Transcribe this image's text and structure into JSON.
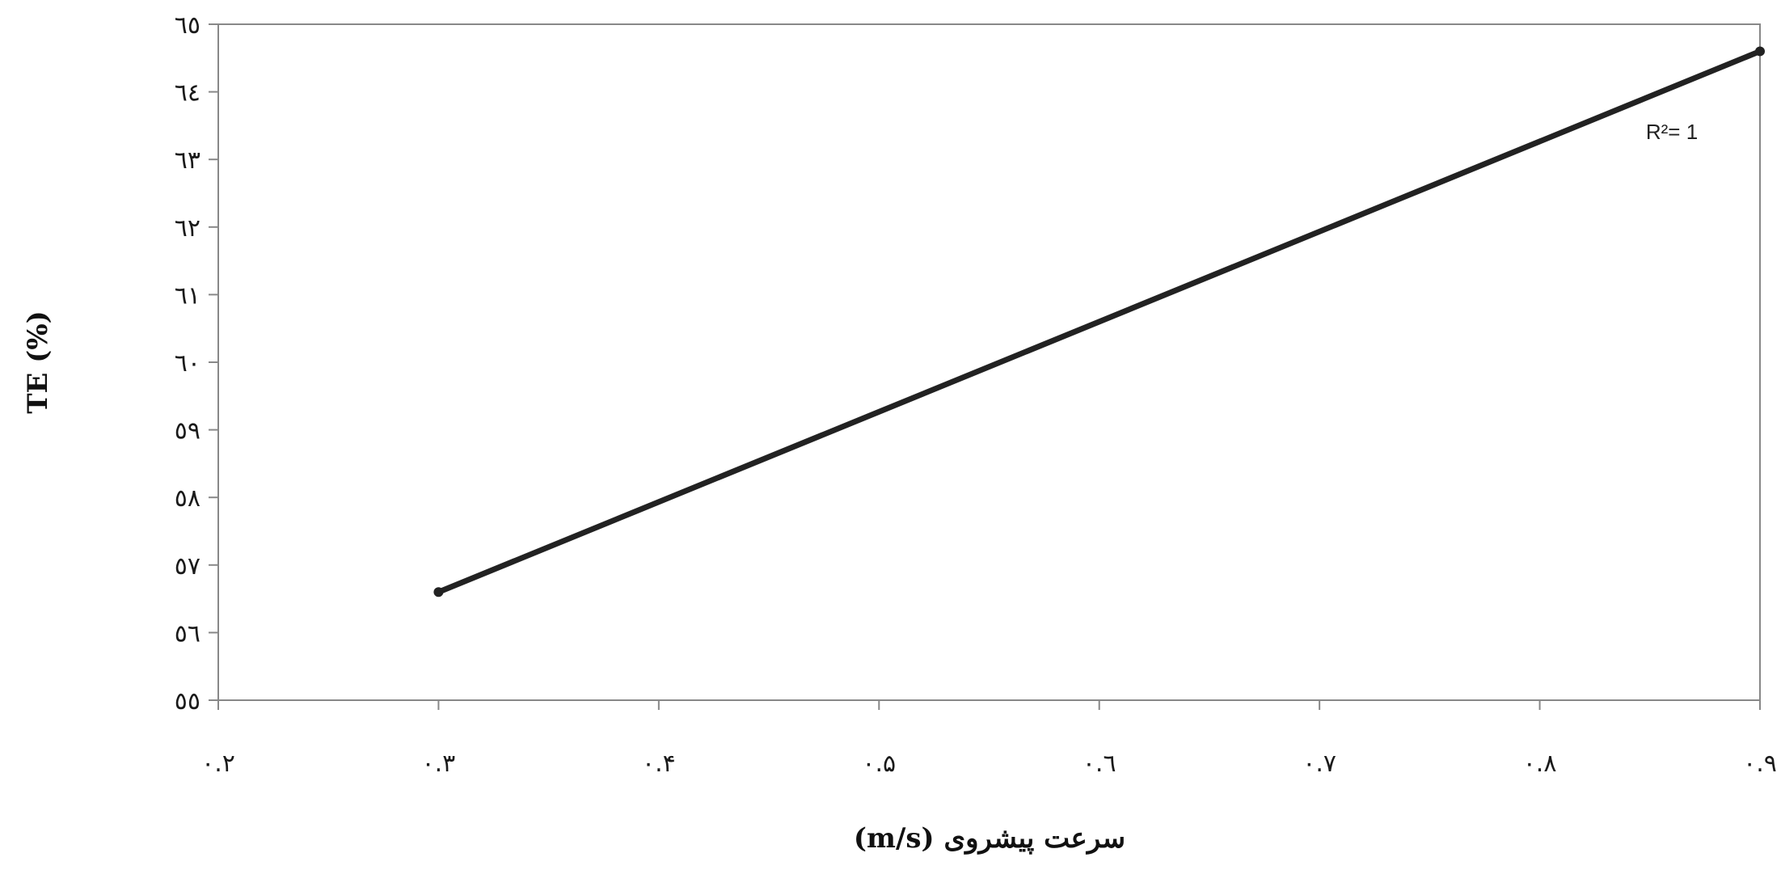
{
  "chart_data": {
    "type": "line",
    "title": "",
    "xlabel": "سرعت پیشروی (m/s)",
    "ylabel": "TE (%)",
    "xlim": [
      0.2,
      0.9
    ],
    "ylim": [
      55,
      65
    ],
    "x_ticks": [
      0.2,
      0.3,
      0.4,
      0.5,
      0.6,
      0.7,
      0.8,
      0.9
    ],
    "x_tick_labels": [
      "۰.۲",
      "۰.۳",
      "۰.۴",
      "۰.۵",
      "۰.٦",
      "۰.۷",
      "۰.۸",
      "۰.۹"
    ],
    "y_ticks": [
      55,
      56,
      57,
      58,
      59,
      60,
      61,
      62,
      63,
      64,
      65
    ],
    "y_tick_labels": [
      "٥٥",
      "٥٦",
      "٥٧",
      "٥٨",
      "٥٩",
      "٦٠",
      "٦١",
      "٦٢",
      "٦٣",
      "٦٤",
      "٦٥"
    ],
    "grid": false,
    "legend": "none",
    "series": [
      {
        "x": [
          0.3,
          0.9
        ],
        "y": [
          56.6,
          64.6
        ],
        "color": "#222222"
      }
    ],
    "annotations": [
      {
        "text": "R²= 1",
        "x": 0.86,
        "y": 63.3
      }
    ]
  }
}
